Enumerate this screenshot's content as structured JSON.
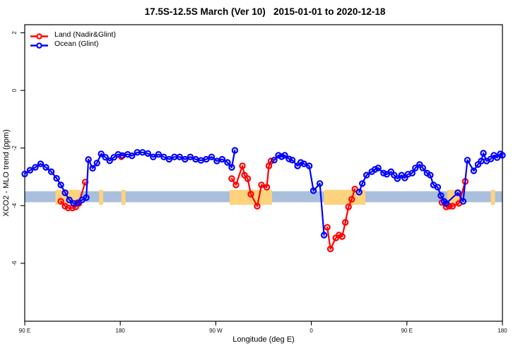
{
  "title": "17.5S-12.5S March (Ver 10)   2015-01-01 to 2020-12-18",
  "legend": {
    "position": "top-left",
    "items": [
      {
        "label": "Land (Nadir&Glint)",
        "color": "#FF0000"
      },
      {
        "label": "Ocean (Glint)",
        "color": "#0000FF"
      }
    ]
  },
  "chart_data": {
    "type": "line",
    "title": "17.5S-12.5S March (Ver 10)   2015-01-01 to 2020-12-18",
    "xlabel": "Longitude (deg E)",
    "ylabel": "XCO2 - MLO trend (ppm)",
    "x_axis": {
      "min": 90,
      "max": 540,
      "note": "longitude wraps eastward: 90E -> 180 -> 90W -> 0 -> 90E -> 180",
      "ticks": [
        90,
        180,
        270,
        360,
        450,
        540
      ],
      "tick_labels": [
        "90 E",
        "180",
        "90 W",
        "0",
        "90 E",
        "180"
      ]
    },
    "y_axis": {
      "min": -8.01,
      "max": 2.28,
      "ticks": [
        2,
        0,
        -2,
        -4,
        -6
      ],
      "tick_labels": [
        "2",
        "0",
        "-2",
        "-4",
        "-6"
      ]
    },
    "reference_band": {
      "color": "#A9BFDC",
      "y_top": -3.5,
      "y_bottom": -3.88,
      "x_from": 90,
      "x_to": 540
    },
    "highlight_bands": {
      "color": "#FFD27E",
      "y_top": -3.45,
      "y_bottom": -3.97,
      "segments": [
        [
          119,
          142
        ],
        [
          160,
          164
        ],
        [
          181,
          185
        ],
        [
          283,
          323
        ],
        [
          372,
          411
        ],
        [
          488,
          500
        ],
        [
          529,
          533
        ]
      ]
    },
    "series": [
      {
        "name": "Land (Nadir&Glint)",
        "color": "#FF0000",
        "marker": "open-circle",
        "segments": [
          [
            [
              124,
              -3.85
            ],
            [
              128,
              -4.02
            ],
            [
              131,
              -4.08
            ],
            [
              135,
              -4.08
            ],
            [
              138,
              -4.04
            ],
            [
              141,
              -3.92
            ],
            [
              147,
              -3.18
            ]
          ],
          [
            [
              181,
              -2.3
            ]
          ],
          [
            [
              285,
              -3.06
            ],
            [
              289,
              -3.28
            ],
            [
              295,
              -2.62
            ],
            [
              297,
              -2.94
            ],
            [
              300,
              -3.06
            ],
            [
              303,
              -3.6
            ],
            [
              309,
              -4.02
            ],
            [
              313,
              -3.28
            ],
            [
              318,
              -3.36
            ],
            [
              320,
              -2.62
            ],
            [
              322,
              -2.45
            ]
          ],
          [
            [
              375,
              -4.75
            ],
            [
              378,
              -5.5
            ],
            [
              383,
              -5.12
            ],
            [
              386,
              -5.02
            ],
            [
              389,
              -5.07
            ],
            [
              392,
              -4.58
            ],
            [
              395,
              -4.04
            ],
            [
              398,
              -3.78
            ],
            [
              401,
              -3.42
            ]
          ],
          [
            [
              483,
              -3.89
            ],
            [
              487,
              -4.04
            ],
            [
              490,
              -4.02
            ],
            [
              493,
              -4.02
            ],
            [
              499,
              -3.92
            ],
            [
              505,
              -3.16
            ]
          ]
        ]
      },
      {
        "name": "Ocean (Glint)",
        "color": "#0000FF",
        "marker": "open-circle",
        "segments": [
          [
            [
              90,
              -2.9
            ],
            [
              95,
              -2.77
            ],
            [
              100,
              -2.67
            ],
            [
              105,
              -2.55
            ],
            [
              110,
              -2.67
            ],
            [
              115,
              -2.82
            ],
            [
              120,
              -3.05
            ],
            [
              124,
              -3.28
            ],
            [
              128,
              -3.55
            ],
            [
              132,
              -3.8
            ],
            [
              136,
              -3.92
            ],
            [
              140,
              -3.9
            ],
            [
              144,
              -3.8
            ],
            [
              148,
              -3.72
            ],
            [
              150,
              -2.4
            ],
            [
              154,
              -2.7
            ],
            [
              158,
              -2.52
            ],
            [
              162,
              -2.2
            ],
            [
              166,
              -2.32
            ],
            [
              170,
              -2.44
            ],
            [
              174,
              -2.32
            ],
            [
              178,
              -2.22
            ],
            [
              182,
              -2.26
            ],
            [
              187,
              -2.22
            ],
            [
              191,
              -2.27
            ],
            [
              196,
              -2.15
            ],
            [
              201,
              -2.15
            ],
            [
              206,
              -2.19
            ],
            [
              211,
              -2.31
            ],
            [
              216,
              -2.22
            ],
            [
              221,
              -2.31
            ],
            [
              226,
              -2.39
            ],
            [
              231,
              -2.31
            ],
            [
              236,
              -2.31
            ],
            [
              241,
              -2.39
            ],
            [
              246,
              -2.31
            ],
            [
              251,
              -2.39
            ],
            [
              256,
              -2.43
            ],
            [
              261,
              -2.39
            ],
            [
              266,
              -2.31
            ],
            [
              271,
              -2.45
            ],
            [
              276,
              -2.39
            ],
            [
              281,
              -2.5
            ],
            [
              285,
              -2.67
            ],
            [
              288,
              -2.08
            ]
          ],
          [
            [
              325,
              -2.42
            ],
            [
              329,
              -2.25
            ],
            [
              332,
              -2.3
            ],
            [
              335,
              -2.25
            ],
            [
              339,
              -2.38
            ],
            [
              342,
              -2.42
            ],
            [
              347,
              -2.62
            ],
            [
              350,
              -2.5
            ],
            [
              353,
              -2.55
            ],
            [
              358,
              -2.62
            ],
            [
              362,
              -3.48
            ],
            [
              368,
              -3.23
            ],
            [
              372,
              -5.02
            ]
          ],
          [
            [
              405,
              -3.53
            ],
            [
              408,
              -3.23
            ],
            [
              412,
              -2.94
            ],
            [
              417,
              -2.82
            ],
            [
              420,
              -2.74
            ],
            [
              423,
              -2.69
            ],
            [
              428,
              -2.87
            ],
            [
              431,
              -2.91
            ],
            [
              435,
              -2.82
            ],
            [
              438,
              -2.94
            ],
            [
              441,
              -3.06
            ],
            [
              445,
              -2.94
            ],
            [
              448,
              -3.04
            ],
            [
              451,
              -2.91
            ],
            [
              455,
              -2.87
            ],
            [
              458,
              -2.69
            ],
            [
              462,
              -2.57
            ],
            [
              465,
              -2.69
            ],
            [
              469,
              -2.87
            ],
            [
              472,
              -2.94
            ],
            [
              475,
              -3.28
            ],
            [
              479,
              -3.36
            ],
            [
              482,
              -3.65
            ],
            [
              485,
              -3.85
            ],
            [
              487,
              -3.92
            ],
            [
              498,
              -3.55
            ],
            [
              503,
              -3.85
            ],
            [
              507,
              -2.42
            ],
            [
              513,
              -2.79
            ],
            [
              517,
              -2.57
            ],
            [
              520,
              -2.45
            ],
            [
              522,
              -2.18
            ],
            [
              525,
              -2.45
            ],
            [
              529,
              -2.38
            ],
            [
              532,
              -2.25
            ],
            [
              535,
              -2.33
            ],
            [
              538,
              -2.2
            ],
            [
              540,
              -2.25
            ]
          ]
        ]
      }
    ],
    "grid": false,
    "background": "#ffffff"
  }
}
